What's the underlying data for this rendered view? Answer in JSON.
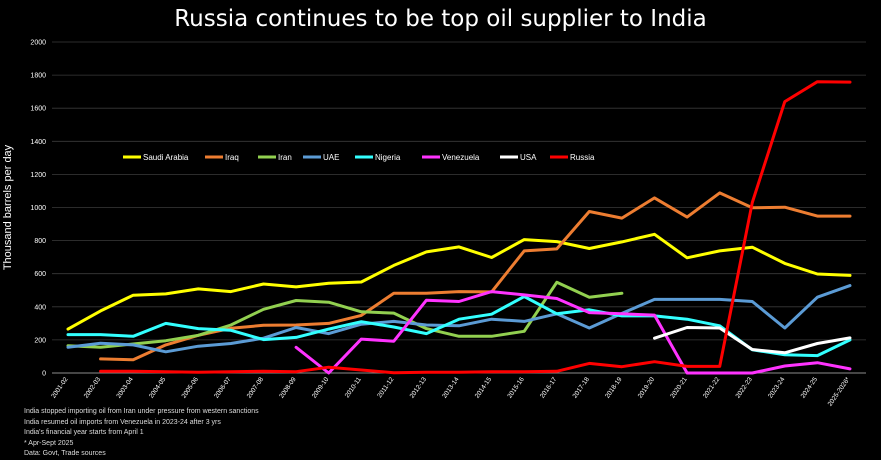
{
  "chart_data": {
    "type": "line",
    "title": "Russia continues to be top oil supplier to India",
    "ylabel": "Thousand barrels per day",
    "xlabel": "",
    "ylim": [
      0,
      2000
    ],
    "yticks": [
      0,
      200,
      400,
      600,
      800,
      1000,
      1200,
      1400,
      1600,
      1800,
      2000
    ],
    "grid": true,
    "legend_position": "top",
    "categories": [
      "2001-02",
      "2002-03",
      "2003-04",
      "2004-05",
      "2005-06",
      "2006-07",
      "2007-08",
      "2008-09",
      "2009-10",
      "2010-11",
      "2011-12",
      "2012-13",
      "2013-14",
      "2014-15",
      "2015-16",
      "2016-17",
      "2017-18",
      "2018-19",
      "2019-20",
      "2020-21",
      "2021-22",
      "2022-23",
      "2023-24",
      "2024-25",
      "2025-2026*"
    ],
    "series": [
      {
        "name": "Saudi Arabia",
        "color": "#ffff00",
        "values": [
          265,
          375,
          470,
          478,
          508,
          492,
          538,
          520,
          542,
          550,
          650,
          732,
          762,
          698,
          806,
          794,
          752,
          792,
          838,
          696,
          738,
          760,
          662,
          598,
          590
        ]
      },
      {
        "name": "Iraq",
        "color": "#ed7d31",
        "values": [
          null,
          85,
          80,
          170,
          228,
          270,
          288,
          290,
          300,
          348,
          482,
          482,
          492,
          490,
          738,
          750,
          976,
          936,
          1058,
          942,
          1088,
          998,
          1002,
          948,
          948
        ]
      },
      {
        "name": "Iran",
        "color": "#92d050",
        "values": [
          165,
          155,
          175,
          195,
          228,
          290,
          385,
          438,
          428,
          370,
          362,
          268,
          222,
          222,
          252,
          548,
          458,
          482,
          null,
          null,
          null,
          null,
          null,
          null,
          null
        ]
      },
      {
        "name": "UAE",
        "color": "#5b9bd5",
        "values": [
          155,
          180,
          170,
          128,
          162,
          178,
          210,
          275,
          238,
          295,
          312,
          290,
          285,
          325,
          312,
          358,
          272,
          360,
          445,
          445,
          445,
          432,
          272,
          458,
          528
        ]
      },
      {
        "name": "Nigeria",
        "color": "#33ffff",
        "values": [
          232,
          232,
          222,
          300,
          268,
          258,
          202,
          215,
          265,
          310,
          278,
          238,
          325,
          355,
          462,
          358,
          382,
          345,
          345,
          325,
          285,
          140,
          110,
          105,
          200
        ]
      },
      {
        "name": "Venezuela",
        "color": "#ff33ff",
        "values": [
          null,
          null,
          null,
          null,
          null,
          null,
          null,
          155,
          0,
          205,
          192,
          440,
          432,
          492,
          472,
          450,
          365,
          358,
          350,
          0,
          0,
          0,
          42,
          62,
          25
        ]
      },
      {
        "name": "USA",
        "color": "#ffffff",
        "values": [
          null,
          null,
          null,
          null,
          null,
          null,
          null,
          null,
          null,
          null,
          null,
          null,
          null,
          null,
          null,
          null,
          null,
          null,
          210,
          275,
          272,
          142,
          122,
          178,
          212
        ]
      },
      {
        "name": "Russia",
        "color": "#ff0000",
        "values": [
          null,
          10,
          10,
          8,
          5,
          8,
          10,
          8,
          35,
          18,
          2,
          5,
          5,
          8,
          8,
          10,
          58,
          38,
          68,
          40,
          40,
          1030,
          1640,
          1760,
          1758
        ]
      }
    ],
    "notes": [
      "India stopped importing oil from Iran under pressure from western sanctions",
      "India resumed oil imports from Venezuela in 2023-24 after 3 yrs",
      "India's financial year starts from April 1",
      "* Apr-Sept 2025",
      "Data: Govt, Trade sources"
    ]
  }
}
